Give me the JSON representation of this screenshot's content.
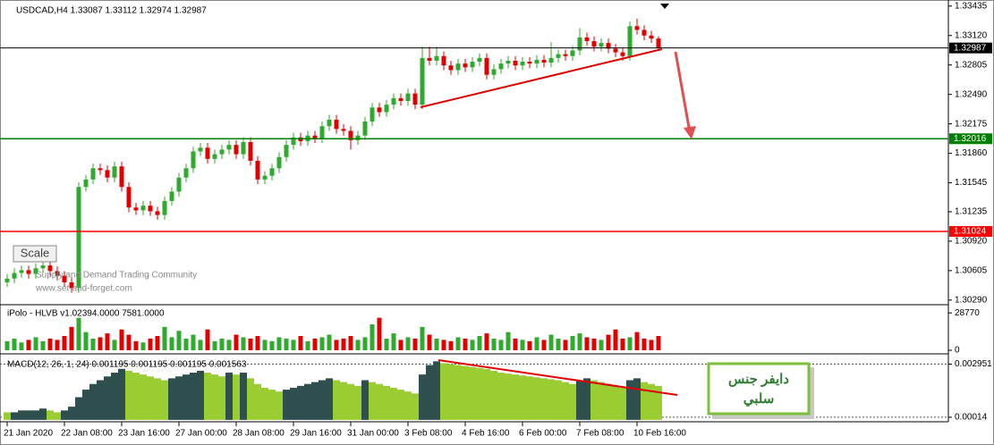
{
  "chart_data": {
    "type": "candlestick",
    "title": "USDCAD,H4  1.33087 1.33112 1.32974 1.32987",
    "watermark": [
      "Supply and Demand Trading Community",
      "www.set-and-forget.com"
    ],
    "scale_button": "Scale",
    "annotation": [
      "دايفر جنس",
      "سلبي"
    ],
    "categories": [
      "21 Jan 2020",
      null,
      null,
      null,
      null,
      null,
      null,
      null,
      "22 Jan 08:00",
      null,
      null,
      null,
      null,
      null,
      null,
      null,
      "23 Jan 16:00",
      null,
      null,
      null,
      null,
      null,
      null,
      null,
      "27 Jan 00:00",
      null,
      null,
      null,
      null,
      null,
      null,
      null,
      "28 Jan 08:00",
      null,
      null,
      null,
      null,
      null,
      null,
      null,
      "29 Jan 16:00",
      null,
      null,
      null,
      null,
      null,
      null,
      null,
      "31 Jan 00:00",
      null,
      null,
      null,
      null,
      null,
      null,
      null,
      "3 Feb 08:00",
      null,
      null,
      null,
      null,
      null,
      null,
      null,
      "4 Feb 16:00",
      null,
      null,
      null,
      null,
      null,
      null,
      null,
      "6 Feb 00:00",
      null,
      null,
      null,
      null,
      null,
      null,
      null,
      "7 Feb 08:00",
      null,
      null,
      null,
      null,
      null,
      null,
      null,
      "10 Feb 16:00",
      null,
      null,
      null
    ],
    "open": [
      1.3048,
      1.3052,
      1.3058,
      1.3061,
      1.3057,
      1.3063,
      1.3066,
      1.306,
      1.3055,
      1.3048,
      1.3042,
      1.315,
      1.3158,
      1.317,
      1.3168,
      1.316,
      1.3172,
      1.315,
      1.3128,
      1.3125,
      1.313,
      1.3124,
      1.312,
      1.3135,
      1.3145,
      1.316,
      1.317,
      1.3188,
      1.3192,
      1.318,
      1.3185,
      1.319,
      1.3195,
      1.3185,
      1.3198,
      1.3178,
      1.3158,
      1.3162,
      1.317,
      1.3182,
      1.3195,
      1.3203,
      1.3199,
      1.3205,
      1.3202,
      1.3215,
      1.3222,
      1.3212,
      1.321,
      1.32,
      1.3205,
      1.322,
      1.3235,
      1.323,
      1.3238,
      1.3245,
      1.3242,
      1.325,
      1.3238,
      1.3288,
      1.3285,
      1.329,
      1.328,
      1.3275,
      1.3282,
      1.3278,
      1.3284,
      1.3288,
      1.327,
      1.3276,
      1.3282,
      1.3285,
      1.328,
      1.3284,
      1.3282,
      1.3286,
      1.3283,
      1.3288,
      1.3292,
      1.329,
      1.3296,
      1.331,
      1.3306,
      1.33,
      1.3304,
      1.3298,
      1.3294,
      1.329,
      1.3322,
      1.3318,
      1.3312,
      1.33087
    ],
    "high": [
      1.3057,
      1.3063,
      1.3066,
      1.3066,
      1.3068,
      1.3071,
      1.3071,
      1.3065,
      1.306,
      1.3053,
      1.3155,
      1.3163,
      1.3175,
      1.3175,
      1.3173,
      1.3177,
      1.3177,
      1.3155,
      1.3133,
      1.3135,
      1.3135,
      1.3129,
      1.314,
      1.315,
      1.3165,
      1.3175,
      1.3193,
      1.3197,
      1.3197,
      1.319,
      1.3195,
      1.32,
      1.32,
      1.3203,
      1.3203,
      1.3183,
      1.3167,
      1.3175,
      1.3187,
      1.32,
      1.3208,
      1.3208,
      1.321,
      1.321,
      1.322,
      1.3227,
      1.3227,
      1.3217,
      1.3215,
      1.321,
      1.3225,
      1.324,
      1.324,
      1.3243,
      1.325,
      1.325,
      1.3255,
      1.3255,
      1.33,
      1.33,
      1.33,
      1.3295,
      1.3285,
      1.3287,
      1.3287,
      1.3289,
      1.3293,
      1.3293,
      1.3281,
      1.3287,
      1.329,
      1.329,
      1.3289,
      1.3289,
      1.3291,
      1.3291,
      1.3305,
      1.3297,
      1.3297,
      1.3301,
      1.332,
      1.3315,
      1.3311,
      1.3309,
      1.3309,
      1.3303,
      1.3299,
      1.3327,
      1.333,
      1.3323,
      1.3317,
      1.33112
    ],
    "low": [
      1.3043,
      1.3047,
      1.3053,
      1.3052,
      1.3052,
      1.3058,
      1.3055,
      1.305,
      1.3043,
      1.3037,
      1.3037,
      1.3145,
      1.3153,
      1.3163,
      1.3155,
      1.3155,
      1.3145,
      1.3123,
      1.312,
      1.312,
      1.3119,
      1.3115,
      1.3115,
      1.313,
      1.314,
      1.3155,
      1.3165,
      1.3183,
      1.3175,
      1.3175,
      1.318,
      1.3185,
      1.318,
      1.318,
      1.3173,
      1.3153,
      1.3153,
      1.3157,
      1.3165,
      1.3177,
      1.319,
      1.3194,
      1.3194,
      1.3197,
      1.3197,
      1.321,
      1.3207,
      1.3205,
      1.319,
      1.3195,
      1.32,
      1.3215,
      1.3225,
      1.3225,
      1.3233,
      1.3237,
      1.3237,
      1.3233,
      1.3233,
      1.328,
      1.328,
      1.3275,
      1.327,
      1.327,
      1.3273,
      1.3273,
      1.3279,
      1.3265,
      1.3265,
      1.3271,
      1.3277,
      1.3275,
      1.3275,
      1.3277,
      1.3277,
      1.3278,
      1.3278,
      1.3283,
      1.3285,
      1.3285,
      1.3291,
      1.3301,
      1.3295,
      1.3295,
      1.3293,
      1.3289,
      1.3285,
      1.3285,
      1.3313,
      1.3307,
      1.3304,
      1.32974
    ],
    "close": [
      1.3052,
      1.3058,
      1.3061,
      1.3057,
      1.3063,
      1.3066,
      1.306,
      1.3055,
      1.3048,
      1.3042,
      1.315,
      1.3158,
      1.317,
      1.3168,
      1.316,
      1.3172,
      1.315,
      1.3128,
      1.3125,
      1.313,
      1.3124,
      1.312,
      1.3135,
      1.3145,
      1.316,
      1.317,
      1.3188,
      1.3192,
      1.318,
      1.3185,
      1.319,
      1.3195,
      1.3185,
      1.3198,
      1.3178,
      1.3158,
      1.3162,
      1.317,
      1.3182,
      1.3195,
      1.3203,
      1.3199,
      1.3205,
      1.3202,
      1.3215,
      1.3222,
      1.3212,
      1.321,
      1.32,
      1.3205,
      1.322,
      1.3235,
      1.323,
      1.3238,
      1.3245,
      1.3242,
      1.325,
      1.3238,
      1.3288,
      1.3285,
      1.329,
      1.328,
      1.3275,
      1.3282,
      1.3278,
      1.3284,
      1.3288,
      1.327,
      1.3276,
      1.3282,
      1.3285,
      1.328,
      1.3284,
      1.3282,
      1.3286,
      1.3283,
      1.3288,
      1.3292,
      1.329,
      1.3296,
      1.331,
      1.3306,
      1.33,
      1.3304,
      1.3298,
      1.3294,
      1.329,
      1.3322,
      1.3318,
      1.3312,
      1.33087,
      1.32987
    ],
    "up_color": "#2eaa2e",
    "down_color": "#e00000",
    "ylim": [
      1.3025,
      1.335
    ],
    "yticks": [
      1.33435,
      {
        "value": 1.3312,
        "label": "1.33120"
      },
      1.32805,
      {
        "value": 1.3249,
        "label": "1.32490"
      },
      1.32175,
      {
        "value": 1.3186,
        "label": "1.31860"
      },
      1.31545,
      1.31235,
      {
        "value": 1.3092,
        "label": "1.30920"
      },
      1.30605,
      {
        "value": 1.3029,
        "label": "1.30290"
      }
    ],
    "levels": [
      {
        "value": 1.32987,
        "color": "#000000"
      },
      {
        "value": 1.32016,
        "color": "#008000"
      },
      {
        "value": 1.31024,
        "color": "#ff0000"
      }
    ],
    "volume": {
      "label": "iPolo - HLVB v1.02394.0000 7581.0000",
      "ylim": [
        0,
        33000
      ],
      "yticks": [
        28770,
        0
      ],
      "values": [
        7000,
        9000,
        6000,
        8000,
        10000,
        7000,
        9000,
        8000,
        11000,
        18000,
        25000,
        14000,
        9000,
        10000,
        13000,
        8000,
        16000,
        12000,
        7000,
        6000,
        9000,
        11000,
        18000,
        10000,
        15000,
        9000,
        12000,
        8000,
        16000,
        7000,
        9000,
        8000,
        12000,
        10000,
        9000,
        11000,
        8000,
        7000,
        10000,
        9000,
        8000,
        11000,
        7000,
        9000,
        10000,
        12000,
        8000,
        9000,
        11000,
        8000,
        10000,
        20000,
        25000,
        9000,
        13000,
        8000,
        10000,
        9000,
        18000,
        12000,
        9000,
        8000,
        7000,
        10000,
        9000,
        8000,
        11000,
        13000,
        9000,
        8000,
        14000,
        9000,
        8000,
        7000,
        10000,
        8000,
        12000,
        9000,
        8000,
        11000,
        13000,
        10000,
        9000,
        8000,
        12000,
        16000,
        9000,
        10000,
        14000,
        9000,
        8000,
        11000
      ]
    },
    "macd": {
      "label": "MACD(12, 26, 1, 24) 0.001195 0.001195 0.001195 0.001563",
      "ylim": [
        -0.0001,
        0.0034
      ],
      "yticks": [
        0.002951,
        0.00014
      ],
      "rise_color": "#2f4f4f",
      "fall_color": "#9acd32",
      "values": [
        0.0004,
        0.0004,
        0.0005,
        0.0005,
        0.0005,
        0.0006,
        0.0005,
        0.0004,
        0.0005,
        0.0007,
        0.0012,
        0.0016,
        0.0019,
        0.0021,
        0.0023,
        0.0025,
        0.0027,
        0.0026,
        0.0025,
        0.0024,
        0.0023,
        0.0022,
        0.0021,
        0.0022,
        0.0023,
        0.0024,
        0.0025,
        0.0026,
        0.0025,
        0.0024,
        0.0023,
        0.0025,
        0.0024,
        0.0025,
        0.0022,
        0.0019,
        0.0017,
        0.0016,
        0.0015,
        0.0016,
        0.0017,
        0.0018,
        0.0019,
        0.002,
        0.0021,
        0.0022,
        0.0021,
        0.002,
        0.0019,
        0.0018,
        0.0021,
        0.002,
        0.0019,
        0.0018,
        0.0017,
        0.0016,
        0.0015,
        0.0014,
        0.0024,
        0.0029,
        0.0031,
        0.003,
        0.00295,
        0.0029,
        0.00285,
        0.0028,
        0.00275,
        0.0027,
        0.0026,
        0.0025,
        0.00245,
        0.0024,
        0.00235,
        0.0023,
        0.00225,
        0.0022,
        0.00215,
        0.0021,
        0.002,
        0.0019,
        0.0021,
        0.0022,
        0.0021,
        0.002,
        0.0019,
        0.0018,
        0.0017,
        0.0021,
        0.0022,
        0.002,
        0.0019,
        0.0018
      ]
    }
  }
}
